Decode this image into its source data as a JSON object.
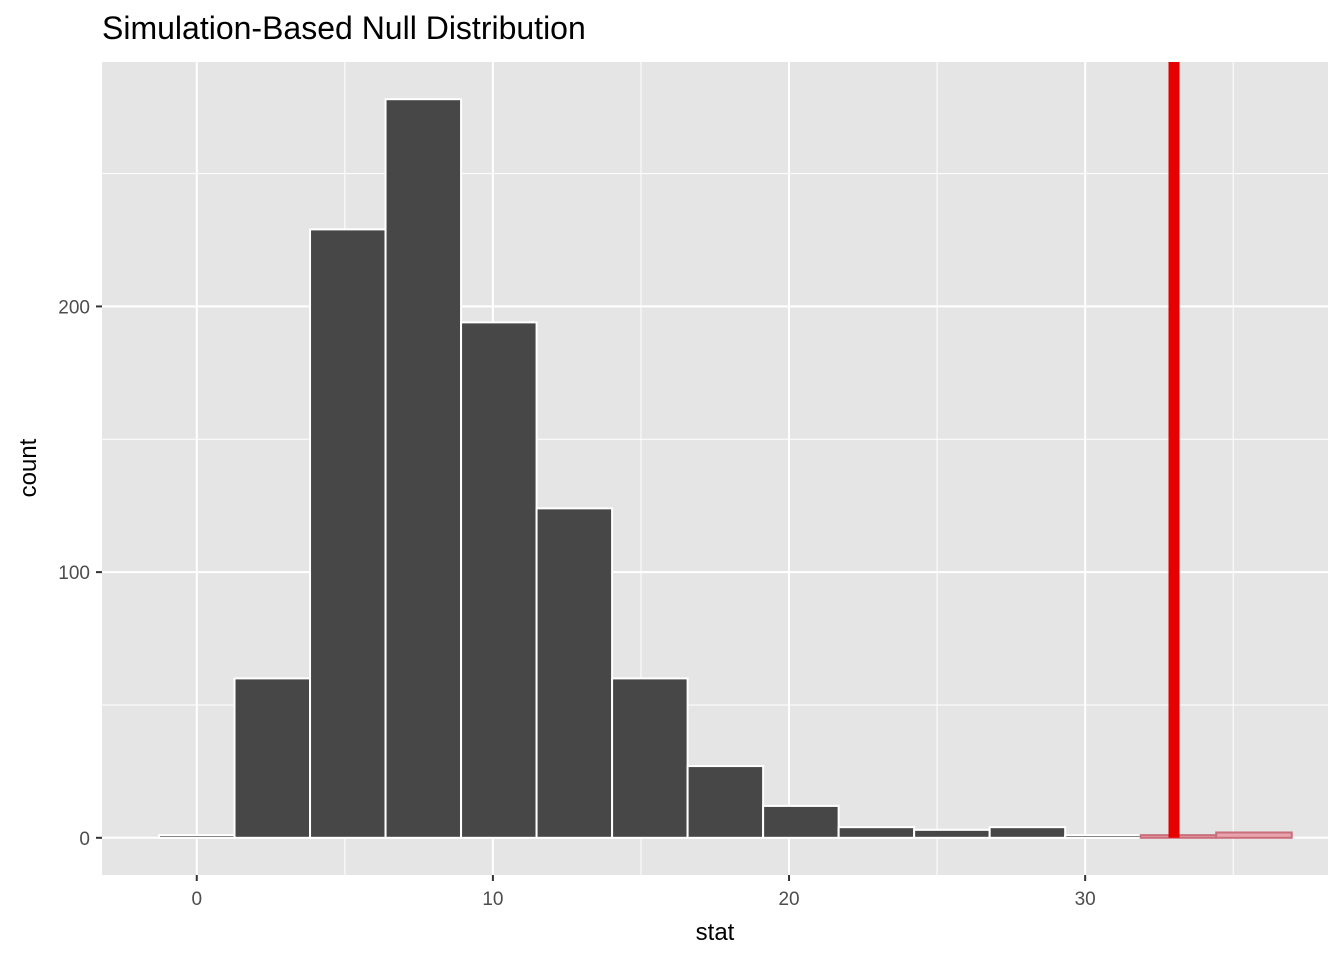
{
  "chart_data": {
    "type": "bar",
    "title": "Simulation-Based Null Distribution",
    "xlabel": "stat",
    "ylabel": "count",
    "xlim": [
      -3.2,
      38.2
    ],
    "ylim": [
      -14,
      292
    ],
    "x_ticks": [
      0,
      10,
      20,
      30
    ],
    "y_ticks": [
      0,
      100,
      200
    ],
    "x_tick_labels": [
      "0",
      "10",
      "20",
      "30"
    ],
    "y_tick_labels": [
      "0",
      "100",
      "200"
    ],
    "bin_width": 2.55,
    "bins": [
      {
        "center": 0.0,
        "count": 1,
        "shaded": false
      },
      {
        "center": 2.55,
        "count": 60,
        "shaded": false
      },
      {
        "center": 5.1,
        "count": 229,
        "shaded": false
      },
      {
        "center": 7.65,
        "count": 278,
        "shaded": false
      },
      {
        "center": 10.2,
        "count": 194,
        "shaded": false
      },
      {
        "center": 12.75,
        "count": 124,
        "shaded": false
      },
      {
        "center": 15.3,
        "count": 60,
        "shaded": false
      },
      {
        "center": 17.85,
        "count": 27,
        "shaded": false
      },
      {
        "center": 20.4,
        "count": 12,
        "shaded": false
      },
      {
        "center": 22.95,
        "count": 4,
        "shaded": false
      },
      {
        "center": 25.5,
        "count": 3,
        "shaded": false
      },
      {
        "center": 28.05,
        "count": 4,
        "shaded": false
      },
      {
        "center": 30.6,
        "count": 1,
        "shaded": false
      },
      {
        "center": 33.15,
        "count": 1,
        "shaded": true
      },
      {
        "center": 35.7,
        "count": 2,
        "shaded": true
      }
    ],
    "observed_stat": 33.0,
    "grid": true,
    "colors": {
      "panel_background": "#e5e5e5",
      "grid_line": "#ffffff",
      "bar_fill": "#474747",
      "bar_outline": "#ffffff",
      "shaded_fill": "#e8a3ab",
      "shaded_outline": "#c96f7c",
      "observed_line": "#e60000"
    }
  }
}
